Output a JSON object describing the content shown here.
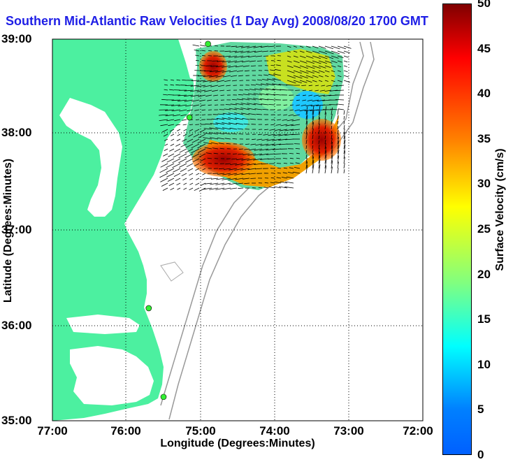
{
  "title": "Southern Mid-Atlantic Raw Velocities (1 Day Avg) 2008/08/20 1700 GMT",
  "axes": {
    "xlabel": "Longitude (Degrees:Minutes)",
    "ylabel": "Latitude (Degrees:Minutes)",
    "xticks": [
      "77:00",
      "76:00",
      "75:00",
      "74:00",
      "73:00",
      "72:00"
    ],
    "yticks": [
      "39:00",
      "38:00",
      "37:00",
      "36:00",
      "35:00"
    ]
  },
  "colorbar": {
    "label": "Surface Velocity (cm/s)",
    "ticks": [
      "50",
      "45",
      "40",
      "35",
      "30",
      "25",
      "20",
      "15",
      "10",
      "5",
      "0"
    ],
    "range": [
      0,
      50
    ],
    "colormap": "jet"
  },
  "colors": {
    "land": "#4cf0a0",
    "water": "#ffffff",
    "contour": "#999999",
    "station": "#33ee33",
    "title": "#1e1ee6"
  },
  "stations": [
    {
      "lon": -74.9,
      "lat": 38.95
    },
    {
      "lon": -75.15,
      "lat": 38.18
    },
    {
      "lon": -75.7,
      "lat": 36.18
    },
    {
      "lon": -75.5,
      "lat": 35.25
    }
  ],
  "map_extent": {
    "lon": [
      -77,
      -72
    ],
    "lat": [
      35,
      39
    ]
  }
}
